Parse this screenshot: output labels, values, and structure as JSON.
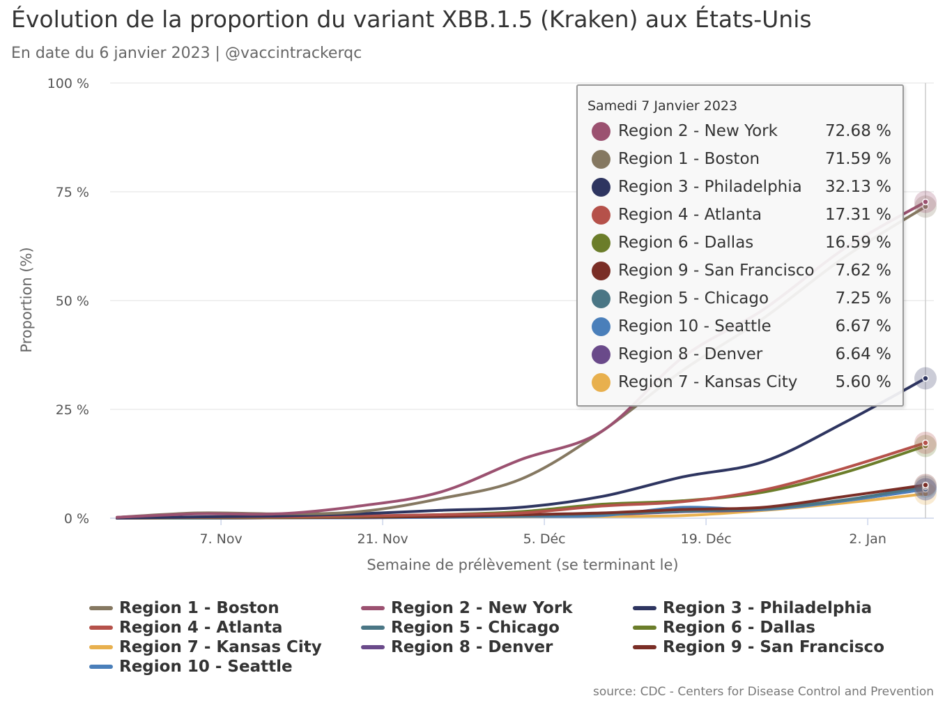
{
  "title": "Évolution de la proportion du variant XBB.1.5 (Kraken) aux États-Unis",
  "subtitle": "En date du 6 janvier 2023 | @vaccintrackerqc",
  "source": "source: CDC - Centers for Disease Control and Prevention",
  "chart_data": {
    "type": "line",
    "title": "Évolution de la proportion du variant XBB.1.5 (Kraken) aux États-Unis",
    "xlabel": "Semaine de prélèvement (se terminant le)",
    "ylabel": "Proportion (%)",
    "ylim": [
      0,
      100
    ],
    "yticks": [
      0,
      25,
      50,
      75,
      100
    ],
    "ytick_labels": [
      "0 %",
      "25 %",
      "50 %",
      "75 %",
      "100 %"
    ],
    "x": [
      "2022-10-29",
      "2022-11-05",
      "2022-11-12",
      "2022-11-19",
      "2022-11-26",
      "2022-12-03",
      "2022-12-10",
      "2022-12-17",
      "2022-12-24",
      "2022-12-31",
      "2023-01-07"
    ],
    "xticks": [
      "2022-11-07",
      "2022-11-21",
      "2022-12-05",
      "2022-12-19",
      "2023-01-02"
    ],
    "xtick_labels": [
      "7. Nov",
      "21. Nov",
      "5. Déc",
      "19. Déc",
      "2. Jan"
    ],
    "grid": "horizontal",
    "legend_position": "bottom",
    "series": [
      {
        "name": "Region 1 - Boston",
        "color": "#857861",
        "values": [
          0.2,
          1.2,
          1.0,
          1.5,
          4.5,
          9.0,
          20.0,
          34.0,
          46.0,
          60.0,
          71.59
        ]
      },
      {
        "name": "Region 2 - New York",
        "color": "#9b5170",
        "values": [
          0.2,
          1.0,
          1.0,
          2.8,
          6.0,
          13.5,
          20.0,
          37.0,
          48.0,
          62.0,
          72.68
        ]
      },
      {
        "name": "Region 3 - Philadelphia",
        "color": "#2e3560",
        "values": [
          0.0,
          0.3,
          0.5,
          1.0,
          1.8,
          2.5,
          5.0,
          9.5,
          13.0,
          22.0,
          32.13
        ]
      },
      {
        "name": "Region 4 - Atlanta",
        "color": "#b5514a",
        "values": [
          0.0,
          0.2,
          0.3,
          0.5,
          0.8,
          1.2,
          2.8,
          3.8,
          6.5,
          11.5,
          17.31
        ]
      },
      {
        "name": "Region 5 - Chicago",
        "color": "#4a7685",
        "values": [
          0.0,
          0.1,
          0.1,
          0.2,
          0.4,
          0.6,
          1.0,
          1.6,
          2.2,
          4.2,
          7.25
        ]
      },
      {
        "name": "Region 6 - Dallas",
        "color": "#6b7d2a",
        "values": [
          0.0,
          0.1,
          0.2,
          0.4,
          0.8,
          1.5,
          3.2,
          4.0,
          6.0,
          10.5,
          16.59
        ]
      },
      {
        "name": "Region 7 - Kansas City",
        "color": "#e8b04e",
        "values": [
          0.0,
          0.0,
          0.1,
          0.1,
          0.2,
          0.3,
          0.4,
          0.6,
          1.8,
          3.5,
          5.6
        ]
      },
      {
        "name": "Region 8 - Denver",
        "color": "#6a4a8a",
        "values": [
          0.0,
          0.0,
          0.1,
          0.1,
          0.3,
          0.5,
          0.8,
          1.5,
          2.0,
          4.0,
          6.64
        ]
      },
      {
        "name": "Region 9 - San Francisco",
        "color": "#7a2e26",
        "values": [
          0.0,
          0.1,
          0.1,
          0.2,
          0.4,
          0.8,
          1.2,
          2.0,
          2.5,
          5.0,
          7.62
        ]
      },
      {
        "name": "Region 10 - Seattle",
        "color": "#4a7fba",
        "values": [
          0.0,
          0.0,
          0.1,
          0.1,
          0.2,
          0.4,
          0.6,
          2.5,
          2.0,
          4.0,
          6.67
        ]
      }
    ]
  },
  "legend": {
    "items": [
      "Region 1 - Boston",
      "Region 2 - New York",
      "Region 3 - Philadelphia",
      "Region 4 - Atlanta",
      "Region 5 - Chicago",
      "Region 6 - Dallas",
      "Region 7 - Kansas City",
      "Region 8 - Denver",
      "Region 9 - San Francisco",
      "Region 10 - Seattle"
    ],
    "colors": [
      "#857861",
      "#9b5170",
      "#2e3560",
      "#b5514a",
      "#4a7685",
      "#6b7d2a",
      "#e8b04e",
      "#6a4a8a",
      "#7a2e26",
      "#4a7fba"
    ]
  },
  "tooltip": {
    "date": "Samedi 7 Janvier 2023",
    "rows": [
      {
        "name": "Region 2 - New York",
        "value": "72.68 %",
        "color": "#9b5170"
      },
      {
        "name": "Region 1 - Boston",
        "value": "71.59 %",
        "color": "#857861"
      },
      {
        "name": "Region 3 - Philadelphia",
        "value": "32.13 %",
        "color": "#2e3560"
      },
      {
        "name": "Region 4 - Atlanta",
        "value": "17.31 %",
        "color": "#b5514a"
      },
      {
        "name": "Region 6 - Dallas",
        "value": "16.59 %",
        "color": "#6b7d2a"
      },
      {
        "name": "Region 9 - San Francisco",
        "value": "7.62 %",
        "color": "#7a2e26"
      },
      {
        "name": "Region 5 - Chicago",
        "value": "7.25 %",
        "color": "#4a7685"
      },
      {
        "name": "Region 10 - Seattle",
        "value": "6.67 %",
        "color": "#4a7fba"
      },
      {
        "name": "Region 8 - Denver",
        "value": "6.64 %",
        "color": "#6a4a8a"
      },
      {
        "name": "Region 7 - Kansas City",
        "value": "5.60 %",
        "color": "#e8b04e"
      }
    ]
  }
}
